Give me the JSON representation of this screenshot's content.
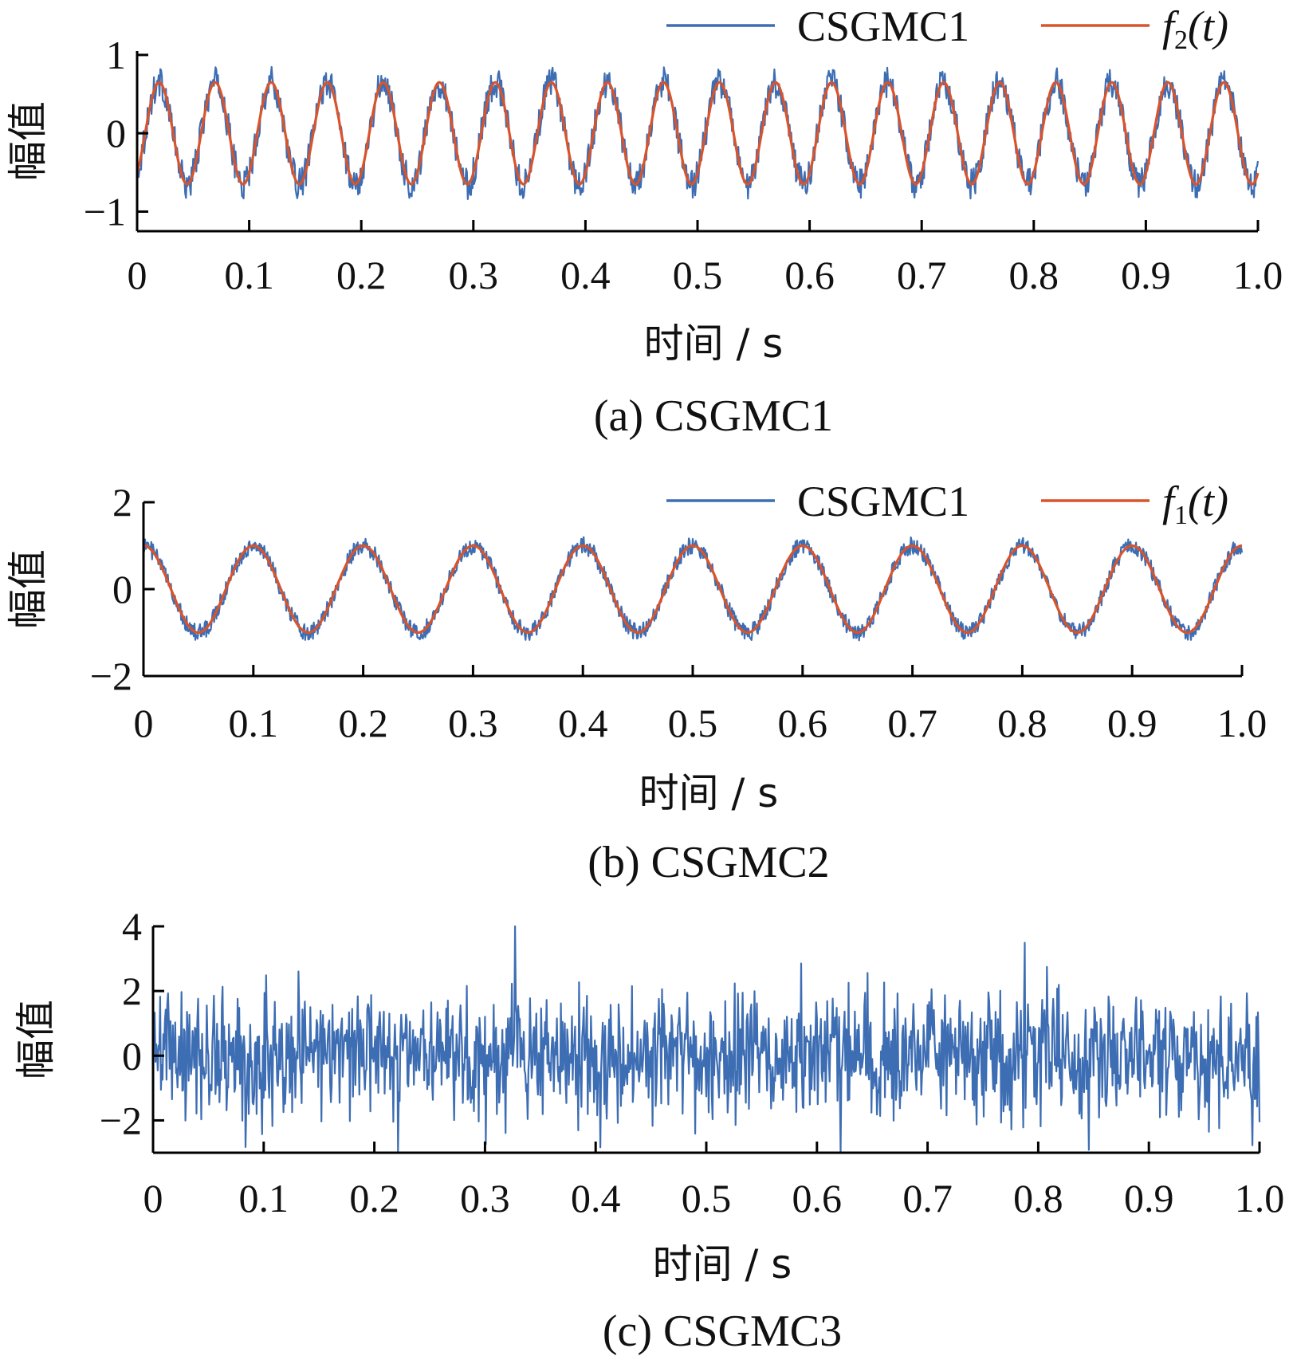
{
  "chart_data": [
    {
      "type": "line",
      "caption": "(a) CSGMC1",
      "xlabel": "时间 / s",
      "ylabel": "幅值",
      "xlim": [
        0,
        1.0
      ],
      "ylim": [
        -1.25,
        1.05
      ],
      "x_ticks": [
        "0",
        "0.1",
        "0.2",
        "0.3",
        "0.4",
        "0.5",
        "0.6",
        "0.7",
        "0.8",
        "0.9",
        "1.0"
      ],
      "y_ticks": [
        {
          "v": 1,
          "label": "1"
        },
        {
          "v": 0,
          "label": "0"
        },
        {
          "v": -1,
          "label": "−1"
        }
      ],
      "legend_placement": "top-right, outside",
      "series": [
        {
          "name": "CSGMC1",
          "color": "#3d6db3",
          "kind": "noisy",
          "amplitude": 0.65,
          "frequency_hz": 20,
          "noise": 0.18
        },
        {
          "name": "f2(t)",
          "legend_main": "f",
          "legend_sub": "2",
          "legend_tail": "(t)",
          "color": "#d9542b",
          "kind": "sine",
          "amplitude": 0.65,
          "frequency_hz": 20
        }
      ]
    },
    {
      "type": "line",
      "caption": "(b) CSGMC2",
      "xlabel": "时间 / s",
      "ylabel": "幅值",
      "xlim": [
        0,
        1.0
      ],
      "ylim": [
        -2,
        2
      ],
      "x_ticks": [
        "0",
        "0.1",
        "0.2",
        "0.3",
        "0.4",
        "0.5",
        "0.6",
        "0.7",
        "0.8",
        "0.9",
        "1.0"
      ],
      "y_ticks": [
        {
          "v": 2,
          "label": "2"
        },
        {
          "v": 0,
          "label": "0"
        },
        {
          "v": -2,
          "label": "−2"
        }
      ],
      "legend_placement": "top-right, outside",
      "series": [
        {
          "name": "CSGMC1",
          "color": "#3d6db3",
          "kind": "noisy",
          "amplitude": 1.0,
          "frequency_hz": 10,
          "noise": 0.18
        },
        {
          "name": "f1(t)",
          "legend_main": "f",
          "legend_sub": "1",
          "legend_tail": "(t)",
          "color": "#d9542b",
          "kind": "sine",
          "amplitude": 1.0,
          "frequency_hz": 10
        }
      ]
    },
    {
      "type": "line",
      "caption": "(c) CSGMC3",
      "xlabel": "时间 / s",
      "ylabel": "幅值",
      "xlim": [
        0,
        1.0
      ],
      "ylim": [
        -3,
        4
      ],
      "x_ticks": [
        "0",
        "0.1",
        "0.2",
        "0.3",
        "0.4",
        "0.5",
        "0.6",
        "0.7",
        "0.8",
        "0.9",
        "1.0"
      ],
      "y_ticks": [
        {
          "v": 4,
          "label": "4"
        },
        {
          "v": 2,
          "label": "2"
        },
        {
          "v": 0,
          "label": "0"
        },
        {
          "v": -2,
          "label": "−2"
        }
      ],
      "series": [
        {
          "name": "CSGMC3",
          "color": "#3d6db3",
          "kind": "noise",
          "amplitude": 0,
          "frequency_hz": 0,
          "noise": 0.95
        }
      ]
    }
  ]
}
